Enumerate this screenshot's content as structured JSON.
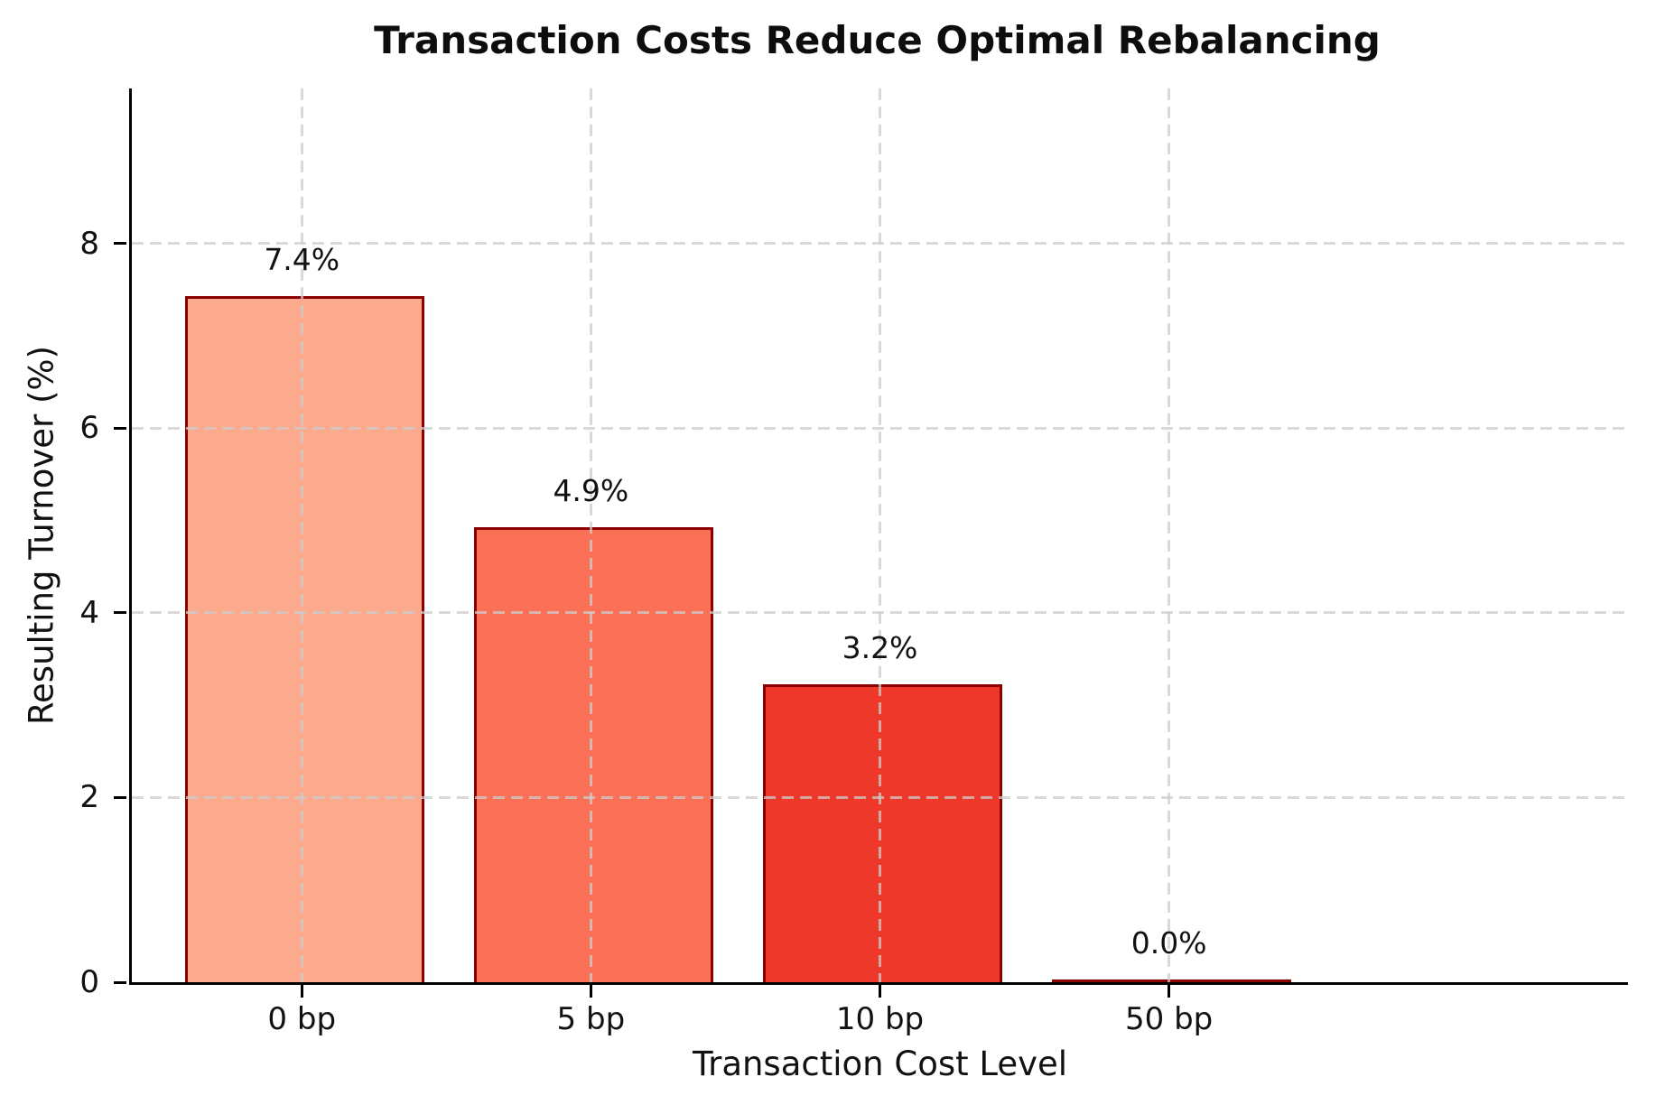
{
  "chart_data": {
    "type": "bar",
    "title": "Transaction Costs Reduce Optimal Rebalancing",
    "xlabel": "Transaction Cost Level",
    "ylabel": "Resulting Turnover (%)",
    "categories": [
      "0 bp",
      "5 bp",
      "10 bp",
      "50 bp"
    ],
    "values": [
      7.4,
      4.9,
      3.2,
      0.0
    ],
    "bar_labels": [
      "7.4%",
      "4.9%",
      "3.2%",
      "0.0%"
    ],
    "yticks": [
      0,
      2,
      4,
      6,
      8
    ],
    "ylim": [
      0,
      9.68
    ],
    "grid": "dashed, horizontal and vertical, drawn over bars",
    "legend": "none",
    "bar_colors": [
      "#FBAA8D",
      "#FB7157",
      "#EE3829",
      "#CB181D"
    ],
    "bar_edge_color": "#8B0000",
    "grid_color": "#cccccc",
    "axis_color": "#000000",
    "text_color": "#111111",
    "title_color": "#0d0d0d"
  }
}
